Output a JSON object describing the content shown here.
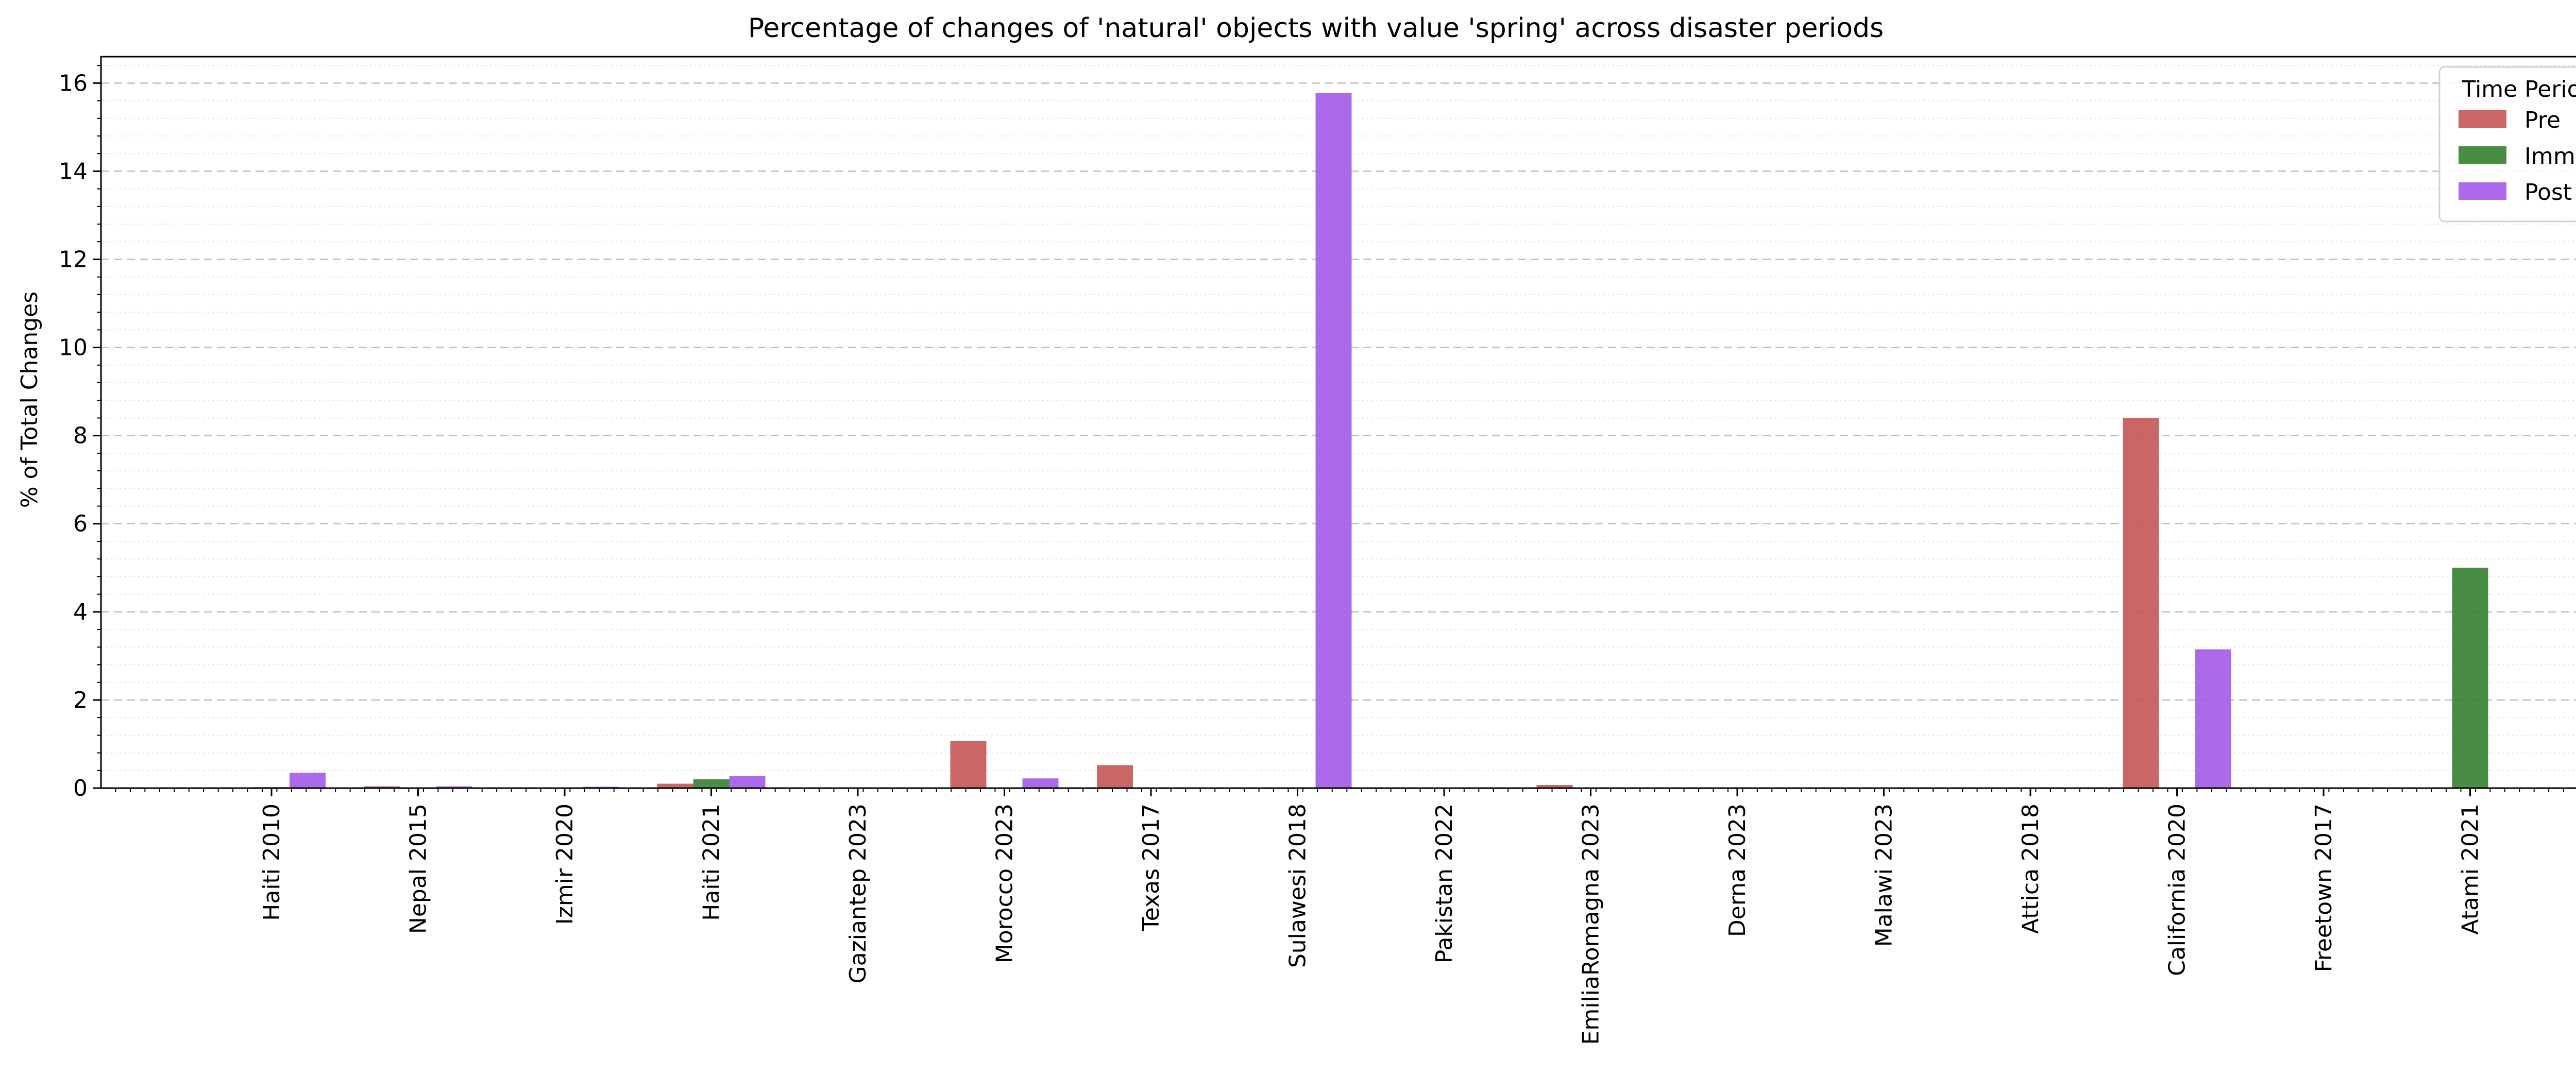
{
  "chart_data": {
    "type": "bar",
    "title": "Percentage of changes of 'natural' objects with value 'spring' across disaster periods",
    "xlabel": "",
    "ylabel": "% of Total Changes",
    "ylim": [
      0,
      16.6
    ],
    "yticks": [
      0,
      2,
      4,
      6,
      8,
      10,
      12,
      14,
      16
    ],
    "grid": "on",
    "legend": {
      "title": "Time Period",
      "placement": "top-right"
    },
    "categories": [
      "Haiti 2010",
      "Nepal 2015",
      "Izmir 2020",
      "Haiti 2021",
      "Gaziantep 2023",
      "Morocco 2023",
      "Texas 2017",
      "Sulawesi 2018",
      "Pakistan 2022",
      "EmiliaRomagna 2023",
      "Derna 2023",
      "Malawi 2023",
      "Attica 2018",
      "California 2020",
      "Freetown 2017",
      "Atami 2021"
    ],
    "series": [
      {
        "name": "Pre",
        "color": "#c45555",
        "values": [
          0,
          0.04,
          0,
          0.1,
          0,
          1.07,
          0.52,
          0,
          0,
          0.07,
          0,
          0,
          0,
          8.4,
          0,
          0
        ]
      },
      {
        "name": "Imm",
        "color": "#357f2f",
        "values": [
          0.02,
          0,
          0,
          0.2,
          0,
          0,
          0,
          0,
          0,
          0,
          0,
          0,
          0,
          0,
          0,
          5.0
        ]
      },
      {
        "name": "Post",
        "color": "#a35ae8",
        "values": [
          0.35,
          0.04,
          0.03,
          0.28,
          0,
          0.22,
          0,
          15.78,
          0,
          0,
          0,
          0,
          0,
          3.15,
          0,
          0
        ]
      }
    ]
  }
}
